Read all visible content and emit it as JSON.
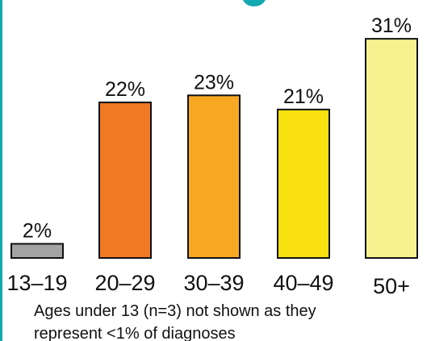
{
  "chart_data": {
    "type": "bar",
    "categories": [
      "13–19",
      "20–29",
      "30–39",
      "40–49",
      "50+"
    ],
    "values": [
      2,
      22,
      23,
      21,
      31
    ],
    "value_labels": [
      "2%",
      "22%",
      "23%",
      "21%",
      "31%"
    ],
    "unit": "%",
    "bar_colors": [
      "#a3a3a3",
      "#f07a24",
      "#f7a823",
      "#f8e10f",
      "#f6f28f"
    ],
    "grid": false,
    "legend": "none"
  },
  "footnote": {
    "line1": "Ages under 13 (n=3) not shown as they",
    "line2": "represent <1% of diagnoses"
  },
  "colors": {
    "accent": "#14a8b0",
    "bar_outline": "#111111",
    "text": "#111111"
  }
}
